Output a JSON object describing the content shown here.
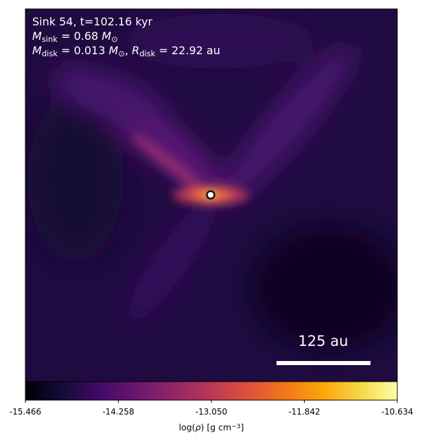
{
  "chart_data": {
    "type": "image",
    "annotations": [
      [
        {
          "text": "Sink 54, t=102.16 kyr"
        }
      ],
      [
        {
          "italic": "M"
        },
        {
          "sub": "sink"
        },
        {
          "text": " = 0.68 "
        },
        {
          "italic": "M"
        },
        {
          "sub": "⊙"
        }
      ],
      [
        {
          "italic": "M"
        },
        {
          "sub": "disk"
        },
        {
          "text": " = 0.013 "
        },
        {
          "italic": "M"
        },
        {
          "sub": "⊙"
        },
        {
          "text": ", "
        },
        {
          "italic": "R"
        },
        {
          "sub": "disk"
        },
        {
          "text": " = 22.92 au"
        }
      ]
    ],
    "scale_bar_label": "125 au",
    "colormap": "inferno",
    "colorbar": {
      "label": [
        {
          "text": "log("
        },
        {
          "italic": "ρ"
        },
        {
          "text": ") [g cm"
        },
        {
          "sup": "−3"
        },
        {
          "text": "]"
        }
      ],
      "lim": [
        -15.466,
        -10.634
      ],
      "ticks": [
        -15.466,
        -14.258,
        {
          "value": -13.05,
          "label": "-13.050"
        },
        -11.842,
        -10.634
      ]
    }
  }
}
